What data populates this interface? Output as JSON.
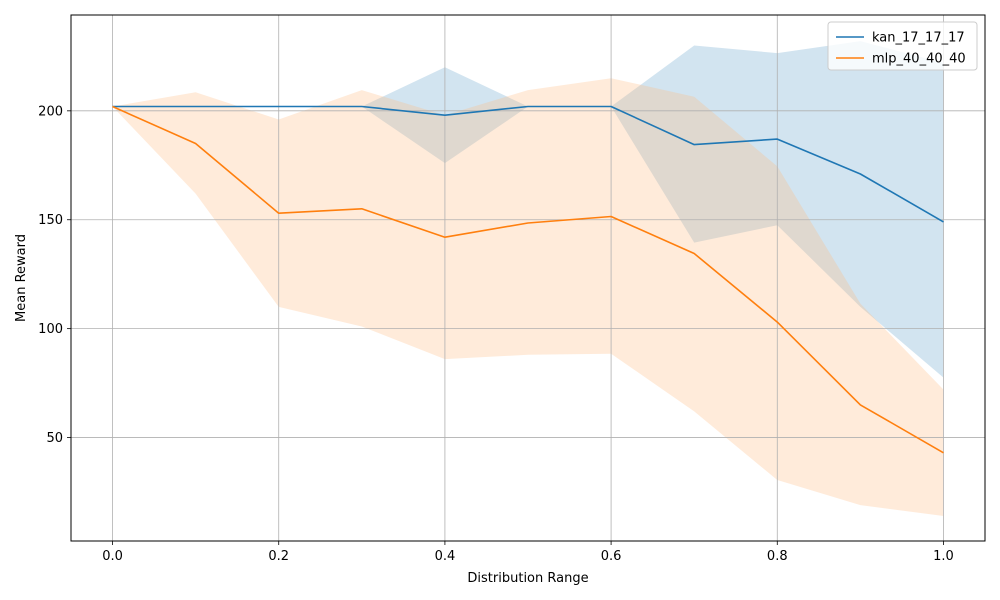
{
  "chart_data": {
    "type": "line",
    "xlabel": "Distribution Range",
    "ylabel": "Mean Reward",
    "xlim": [
      -0.05,
      1.05
    ],
    "ylim": [
      2.5,
      244
    ],
    "xticks": [
      0.0,
      0.2,
      0.4,
      0.6,
      0.8,
      1.0
    ],
    "xtick_labels": [
      "0.0",
      "0.2",
      "0.4",
      "0.6",
      "0.8",
      "1.0"
    ],
    "yticks": [
      50,
      100,
      150,
      200
    ],
    "ytick_labels": [
      "50",
      "100",
      "150",
      "200"
    ],
    "grid": true,
    "legend_position": "top-right",
    "x": [
      0.0,
      0.1,
      0.2,
      0.3,
      0.4,
      0.5,
      0.6,
      0.7,
      0.8,
      0.9,
      1.0
    ],
    "series": [
      {
        "name": "kan_17_17_17",
        "color": "#1f77b4",
        "band_color": "#1f77b4",
        "values": [
          202,
          202,
          202,
          202,
          198,
          202,
          202,
          184.5,
          187,
          171,
          149
        ],
        "upper": [
          202,
          202,
          202,
          202,
          220,
          202,
          202,
          230,
          226.5,
          232,
          222
        ],
        "lower": [
          202,
          202,
          202,
          202,
          176,
          202,
          202,
          139.5,
          147.5,
          110,
          77.5
        ]
      },
      {
        "name": "mlp_40_40_40",
        "color": "#ff7f0e",
        "band_color": "#ffbe86",
        "values": [
          202,
          185,
          153,
          155,
          142,
          148.5,
          151.5,
          134.5,
          103,
          65,
          43
        ],
        "upper": [
          202,
          208.5,
          196,
          209.5,
          198,
          209.5,
          215,
          206.5,
          174.5,
          111.5,
          72
        ],
        "lower": [
          202,
          162,
          110,
          101,
          86,
          88,
          88.5,
          62,
          30.5,
          19,
          14
        ]
      }
    ]
  }
}
